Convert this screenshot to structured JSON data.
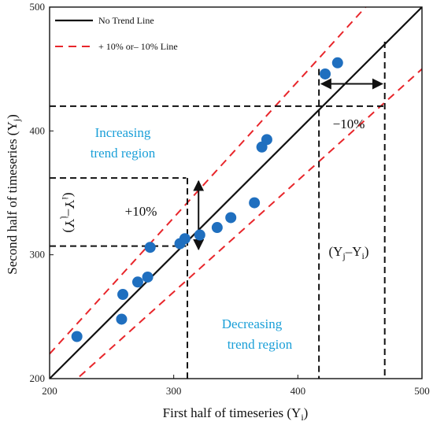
{
  "chart_data": {
    "type": "scatter",
    "xlabel": "First half of timeseries (Y",
    "xlabel_sub": "i",
    "xlabel_close": ")",
    "ylabel": "Second half of timeseries (Y",
    "ylabel_sub": "j",
    "ylabel_close": ")",
    "xlim": [
      200,
      500
    ],
    "ylim": [
      200,
      500
    ],
    "xticks": [
      200,
      300,
      400,
      500
    ],
    "yticks": [
      200,
      300,
      400,
      500
    ],
    "grid": false,
    "legend_position": "top-left",
    "legend": [
      {
        "label": "No Trend Line",
        "style": "solid",
        "color": "#111111"
      },
      {
        "label": "+ 10% or– 10% Line",
        "style": "dashed",
        "color": "#e8262b"
      }
    ],
    "reference_lines": {
      "no_trend_slope": 1.0,
      "upper_factor": 1.1,
      "lower_factor": 0.9
    },
    "points_color": "#1f6fbf",
    "points": [
      {
        "x": 222,
        "y": 234
      },
      {
        "x": 258,
        "y": 248
      },
      {
        "x": 259,
        "y": 268
      },
      {
        "x": 271,
        "y": 278
      },
      {
        "x": 279,
        "y": 282
      },
      {
        "x": 281,
        "y": 306
      },
      {
        "x": 305,
        "y": 309
      },
      {
        "x": 309,
        "y": 313
      },
      {
        "x": 321,
        "y": 316
      },
      {
        "x": 335,
        "y": 322
      },
      {
        "x": 346,
        "y": 330
      },
      {
        "x": 365,
        "y": 342
      },
      {
        "x": 371,
        "y": 387
      },
      {
        "x": 375,
        "y": 393
      },
      {
        "x": 422,
        "y": 446
      },
      {
        "x": 432,
        "y": 455
      }
    ],
    "guides": {
      "upper_example": {
        "x": 310,
        "y_low": 307,
        "y_high": 362
      },
      "lower_example": {
        "x1": 417,
        "x2": 470,
        "y": 420
      }
    },
    "annotations": {
      "increasing_line1": "Increasing",
      "increasing_line2": "trend region",
      "decreasing_line1": "Decreasing",
      "decreasing_line2": "trend region",
      "region_color": "#1a9fd8",
      "plus_label": "+10%",
      "minus_label": "−10%",
      "yj_yi_open": "(Y",
      "yj_yi_sub1": "j",
      "yj_yi_mid": "–Y",
      "yj_yi_sub2": "i",
      "yj_yi_close": ")",
      "rot_label_open": "(Y",
      "rot_label_sub1": "j",
      "rot_label_mid": "–Y",
      "rot_label_sub2": "i",
      "rot_label_close": ")"
    }
  }
}
